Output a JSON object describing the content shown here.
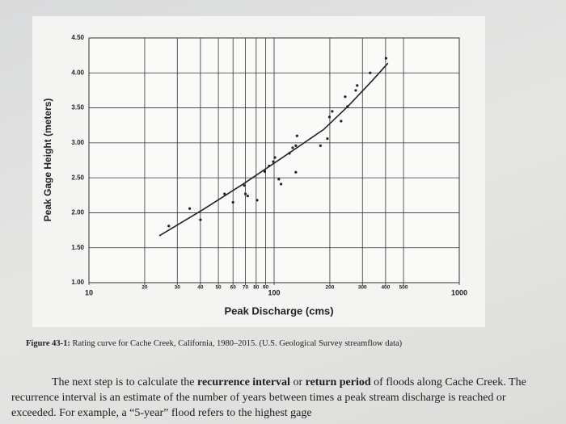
{
  "chart_data": {
    "type": "scatter",
    "xlabel": "Peak Discharge (cms)",
    "ylabel": "Peak Gage Height (meters)",
    "xscale": "log",
    "xlim": [
      10,
      1000
    ],
    "ylim": [
      1.0,
      4.5
    ],
    "xticks": [
      10,
      20,
      30,
      40,
      50,
      60,
      70,
      80,
      90,
      100,
      200,
      300,
      400,
      500,
      1000
    ],
    "yticks": [
      {
        "value": 1.0,
        "label": "1.00"
      },
      {
        "value": 1.5,
        "label": "1.50"
      },
      {
        "value": 2.0,
        "label": "2.00"
      },
      {
        "value": 2.5,
        "label": "2.50"
      },
      {
        "value": 3.0,
        "label": "3.00"
      },
      {
        "value": 3.5,
        "label": "3.50"
      },
      {
        "value": 4.0,
        "label": "4.00"
      },
      {
        "value": 4.5,
        "label": "4.50"
      }
    ],
    "grid": true,
    "color": "#222222",
    "points": {
      "x": [
        27,
        35,
        40,
        54,
        60,
        69,
        70,
        72,
        81,
        89,
        94,
        99,
        101,
        106,
        109,
        121,
        126,
        131,
        131,
        133,
        178,
        194,
        199,
        206,
        230,
        242,
        249,
        276,
        281,
        330,
        402
      ],
      "y": [
        1.81,
        2.06,
        1.9,
        2.27,
        2.15,
        2.39,
        2.27,
        2.24,
        2.18,
        2.59,
        2.67,
        2.73,
        2.79,
        2.48,
        2.41,
        2.85,
        2.93,
        2.96,
        2.58,
        3.1,
        2.96,
        3.06,
        3.37,
        3.45,
        3.31,
        3.66,
        3.52,
        3.75,
        3.82,
        4.0,
        4.21
      ]
    },
    "fit_curve": {
      "x": [
        24,
        41,
        68,
        111,
        185,
        250,
        339,
        412
      ],
      "y": [
        1.67,
        2.04,
        2.41,
        2.79,
        3.19,
        3.52,
        3.89,
        4.14
      ]
    }
  },
  "caption": {
    "label": "Figure 43-1:",
    "text": "Rating curve for Cache Creek, California, 1980–2015. (U.S. Geological Survey streamflow data)"
  },
  "body_text": [
    "The next step is to calculate the ",
    "recurrence interval",
    " or ",
    "return period",
    " of floods along Cache Creek. The recurrence interval is an estimate of the number of years between times a peak stream discharge is reached or exceeded. For example, a “5-year” flood refers to the highest gage"
  ]
}
